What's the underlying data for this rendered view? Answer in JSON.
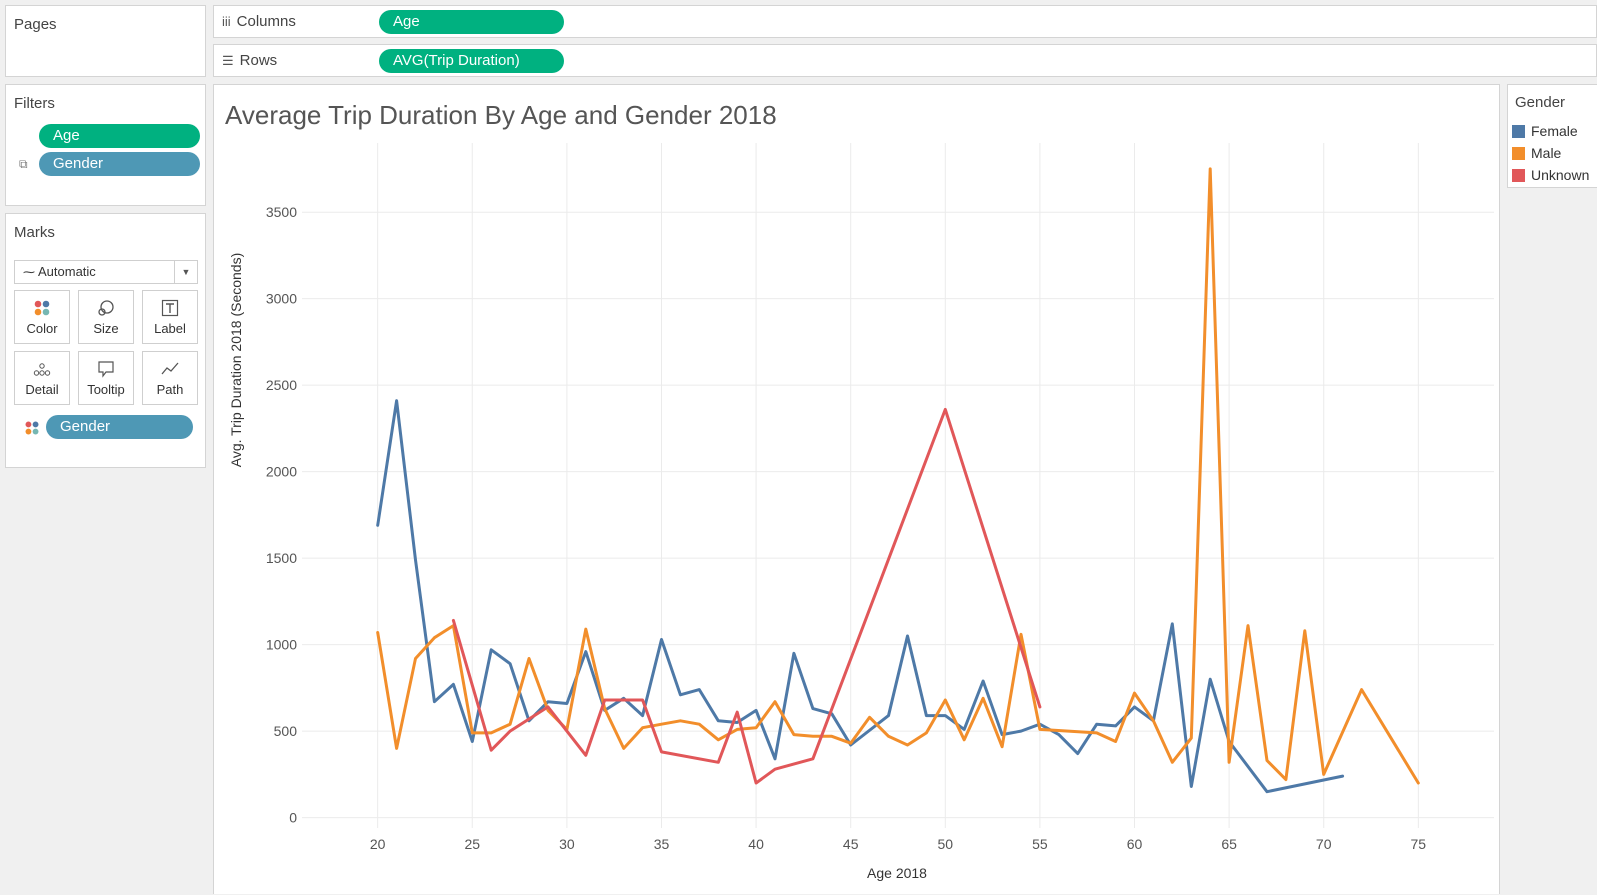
{
  "left_panel": {
    "pages_title": "Pages",
    "filters_title": "Filters",
    "filters": [
      "Age",
      "Gender"
    ],
    "marks_title": "Marks",
    "mark_type": "Automatic",
    "mark_buttons": [
      "Color",
      "Size",
      "Label",
      "Detail",
      "Tooltip",
      "Path"
    ],
    "mark_pill": "Gender"
  },
  "shelves": {
    "columns_label": "Columns",
    "columns_pill": "Age",
    "rows_label": "Rows",
    "rows_pill": "AVG(Trip Duration)"
  },
  "legend": {
    "title": "Gender",
    "items": [
      {
        "label": "Female",
        "color": "#4e79a7"
      },
      {
        "label": "Male",
        "color": "#f28e2b"
      },
      {
        "label": "Unknown",
        "color": "#e15759"
      }
    ]
  },
  "chart_data": {
    "type": "line",
    "title": "Average Trip Duration By Age and Gender 2018",
    "xlabel": "Age 2018",
    "ylabel": "Avg. Trip Duration 2018 (Seconds)",
    "xlim": [
      16,
      79
    ],
    "ylim": [
      -60,
      3900
    ],
    "xticks": [
      20,
      25,
      30,
      35,
      40,
      45,
      50,
      55,
      60,
      65,
      70,
      75
    ],
    "yticks": [
      0,
      500,
      1000,
      1500,
      2000,
      2500,
      3000,
      3500
    ],
    "grid": true,
    "legend_position": "right",
    "series": [
      {
        "name": "Female",
        "color": "#4e79a7",
        "points": [
          [
            20,
            1690
          ],
          [
            21,
            2410
          ],
          [
            22,
            1490
          ],
          [
            23,
            670
          ],
          [
            24,
            770
          ],
          [
            25,
            440
          ],
          [
            26,
            970
          ],
          [
            27,
            890
          ],
          [
            28,
            560
          ],
          [
            29,
            670
          ],
          [
            30,
            660
          ],
          [
            31,
            960
          ],
          [
            32,
            620
          ],
          [
            33,
            690
          ],
          [
            34,
            590
          ],
          [
            35,
            1030
          ],
          [
            36,
            710
          ],
          [
            37,
            740
          ],
          [
            38,
            560
          ],
          [
            39,
            550
          ],
          [
            40,
            620
          ],
          [
            41,
            340
          ],
          [
            42,
            950
          ],
          [
            43,
            630
          ],
          [
            44,
            600
          ],
          [
            45,
            420
          ],
          [
            47,
            590
          ],
          [
            48,
            1050
          ],
          [
            49,
            590
          ],
          [
            50,
            590
          ],
          [
            51,
            510
          ],
          [
            52,
            790
          ],
          [
            53,
            480
          ],
          [
            54,
            500
          ],
          [
            55,
            540
          ],
          [
            56,
            480
          ],
          [
            57,
            370
          ],
          [
            58,
            540
          ],
          [
            59,
            530
          ],
          [
            60,
            640
          ],
          [
            61,
            560
          ],
          [
            62,
            1120
          ],
          [
            63,
            180
          ],
          [
            64,
            800
          ],
          [
            65,
            440
          ],
          [
            67,
            150
          ],
          [
            71,
            240
          ]
        ]
      },
      {
        "name": "Male",
        "color": "#f28e2b",
        "points": [
          [
            20,
            1070
          ],
          [
            21,
            400
          ],
          [
            22,
            920
          ],
          [
            23,
            1040
          ],
          [
            24,
            1110
          ],
          [
            25,
            490
          ],
          [
            26,
            490
          ],
          [
            27,
            540
          ],
          [
            28,
            920
          ],
          [
            29,
            620
          ],
          [
            30,
            510
          ],
          [
            31,
            1090
          ],
          [
            32,
            630
          ],
          [
            33,
            400
          ],
          [
            34,
            520
          ],
          [
            35,
            540
          ],
          [
            36,
            560
          ],
          [
            37,
            540
          ],
          [
            38,
            450
          ],
          [
            39,
            510
          ],
          [
            40,
            520
          ],
          [
            41,
            670
          ],
          [
            42,
            480
          ],
          [
            43,
            470
          ],
          [
            44,
            470
          ],
          [
            45,
            430
          ],
          [
            46,
            580
          ],
          [
            47,
            470
          ],
          [
            48,
            420
          ],
          [
            49,
            490
          ],
          [
            50,
            680
          ],
          [
            51,
            450
          ],
          [
            52,
            690
          ],
          [
            53,
            410
          ],
          [
            54,
            1060
          ],
          [
            55,
            510
          ],
          [
            58,
            490
          ],
          [
            59,
            440
          ],
          [
            60,
            720
          ],
          [
            61,
            560
          ],
          [
            62,
            320
          ],
          [
            63,
            460
          ],
          [
            64,
            3750
          ],
          [
            65,
            320
          ],
          [
            66,
            1110
          ],
          [
            67,
            330
          ],
          [
            68,
            220
          ],
          [
            69,
            1080
          ],
          [
            70,
            250
          ],
          [
            72,
            740
          ],
          [
            75,
            200
          ]
        ]
      },
      {
        "name": "Unknown",
        "color": "#e15759",
        "points": [
          [
            24,
            1140
          ],
          [
            26,
            390
          ],
          [
            27,
            500
          ],
          [
            29,
            640
          ],
          [
            31,
            360
          ],
          [
            32,
            680
          ],
          [
            34,
            680
          ],
          [
            35,
            380
          ],
          [
            38,
            320
          ],
          [
            39,
            610
          ],
          [
            40,
            200
          ],
          [
            41,
            280
          ],
          [
            43,
            340
          ],
          [
            50,
            2360
          ],
          [
            55,
            640
          ]
        ]
      }
    ]
  }
}
